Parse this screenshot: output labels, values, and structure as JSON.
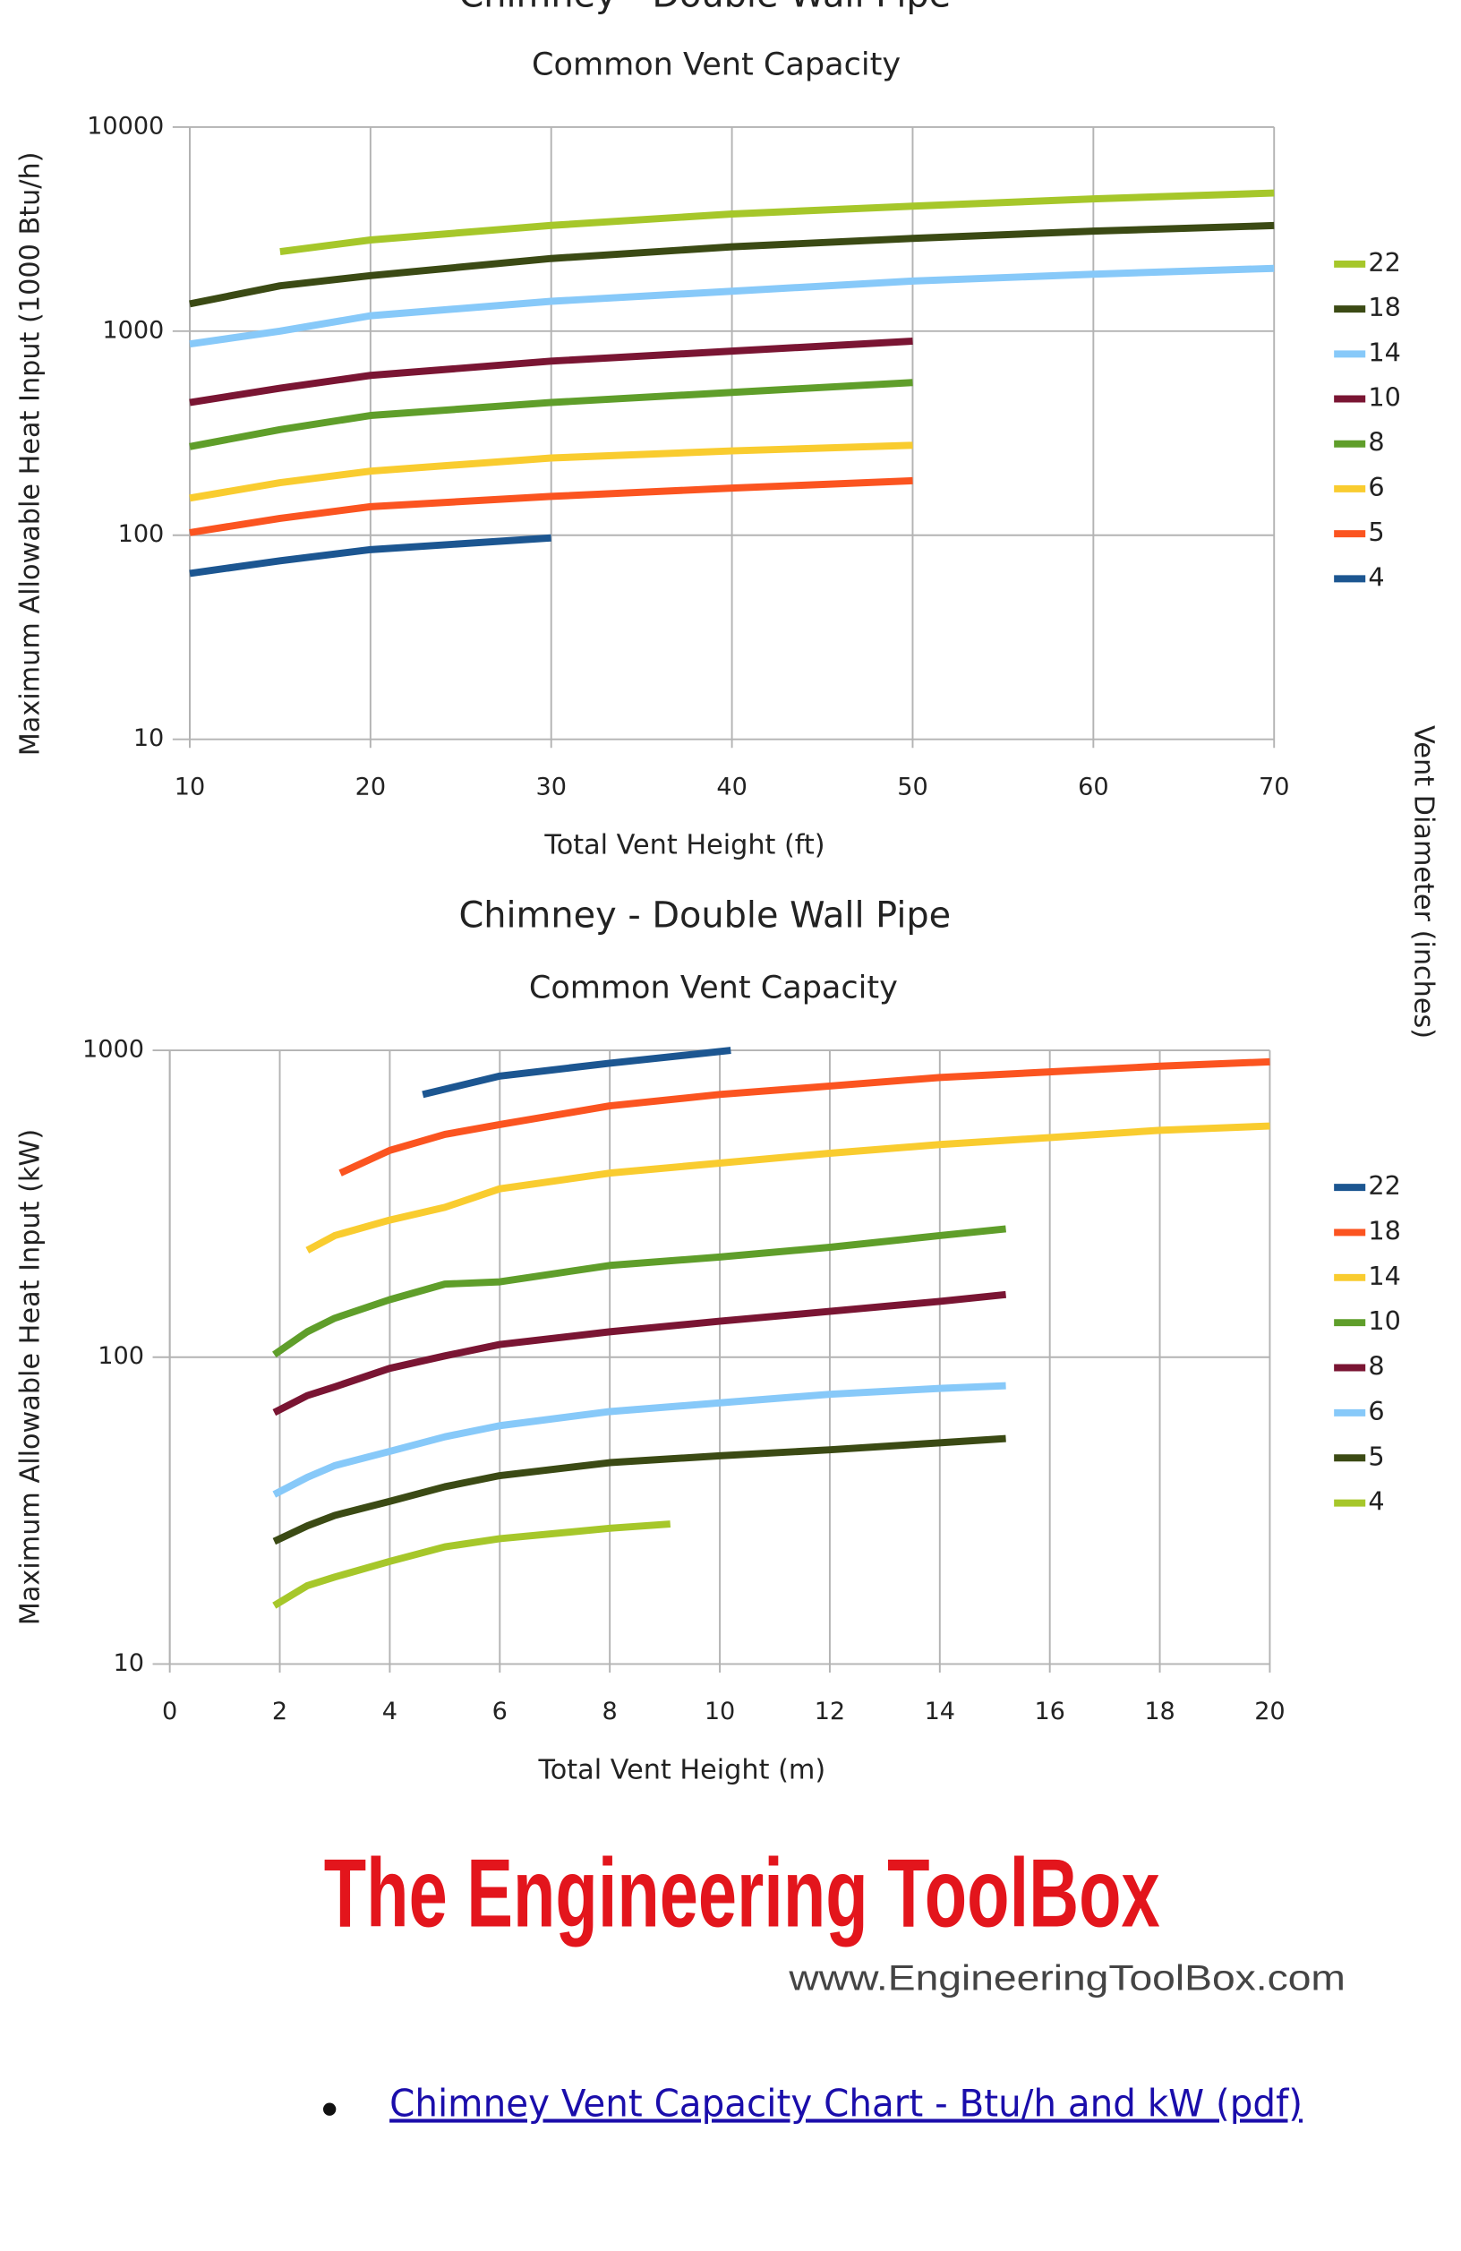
{
  "chart_data": [
    {
      "type": "line",
      "title": "Chimney - Double Wall Pipe",
      "subtitle": "Common Vent Capacity",
      "x_label": "Total Vent Height (ft)",
      "y_label": "Maximum Allowable Heat Input (1000 Btu/h)",
      "legend_title": "Vent Diameter (inches)",
      "legend": "right",
      "grid": true,
      "ylog": true,
      "xlim": [
        10,
        70
      ],
      "xticks": [
        10,
        20,
        30,
        40,
        50,
        60,
        70
      ],
      "ylim": [
        10,
        10000
      ],
      "yticks": [
        10,
        100,
        1000,
        10000
      ],
      "series": [
        {
          "name": "22",
          "color": "#a6c72a",
          "x": [
            15,
            20,
            30,
            40,
            50,
            60,
            70
          ],
          "values": [
            2450,
            2800,
            3300,
            3750,
            4100,
            4450,
            4750
          ]
        },
        {
          "name": "18",
          "color": "#3b4a14",
          "x": [
            10,
            15,
            20,
            30,
            40,
            50,
            60,
            70
          ],
          "values": [
            1360,
            1670,
            1870,
            2270,
            2590,
            2850,
            3090,
            3290
          ]
        },
        {
          "name": "14",
          "color": "#87c9f9",
          "x": [
            10,
            15,
            20,
            30,
            40,
            50,
            60,
            70
          ],
          "values": [
            865,
            1000,
            1190,
            1400,
            1570,
            1760,
            1900,
            2030
          ]
        },
        {
          "name": "10",
          "color": "#7a1533",
          "x": [
            10,
            15,
            20,
            30,
            40,
            50
          ],
          "values": [
            447,
            525,
            607,
            713,
            798,
            893
          ]
        },
        {
          "name": "8",
          "color": "#5f9e2a",
          "x": [
            10,
            15,
            20,
            30,
            40,
            50
          ],
          "values": [
            272,
            329,
            386,
            447,
            501,
            560
          ]
        },
        {
          "name": "6",
          "color": "#f9cc2f",
          "x": [
            10,
            15,
            20,
            30,
            40,
            50
          ],
          "values": [
            152,
            181,
            206,
            239,
            259,
            276
          ]
        },
        {
          "name": "5",
          "color": "#fb5420",
          "x": [
            10,
            15,
            20,
            30,
            40,
            50
          ],
          "values": [
            103,
            121,
            138,
            155,
            170,
            185
          ]
        },
        {
          "name": "4",
          "color": "#1c5691",
          "x": [
            10,
            15,
            20,
            30
          ],
          "values": [
            65,
            75,
            85,
            97
          ]
        }
      ]
    },
    {
      "type": "line",
      "title": "Chimney - Double Wall Pipe",
      "subtitle": "Common Vent Capacity",
      "x_label": "Total Vent Height (m)",
      "y_label": "Maximum Allowable Heat Input (kW)",
      "legend": "right",
      "grid": true,
      "ylog": true,
      "xlim": [
        0,
        20
      ],
      "xticks": [
        0,
        2,
        4,
        6,
        8,
        10,
        12,
        14,
        16,
        18,
        20
      ],
      "ylim": [
        10,
        1000
      ],
      "yticks": [
        10,
        100,
        1000
      ],
      "series": [
        {
          "name": "22",
          "color": "#1c5691",
          "x": [
            4.6,
            6,
            8,
            10.2
          ],
          "values": [
            718,
            825,
            908,
            1000
          ]
        },
        {
          "name": "18",
          "color": "#fb5420",
          "x": [
            3.1,
            4,
            5,
            6,
            8,
            10,
            12,
            14,
            16,
            18,
            20
          ],
          "values": [
            398,
            472,
            532,
            573,
            659,
            718,
            765,
            816,
            851,
            888,
            918
          ]
        },
        {
          "name": "14",
          "color": "#f9cc2f",
          "x": [
            2.5,
            3,
            4,
            5,
            6,
            8,
            10,
            12,
            14,
            16,
            18,
            20
          ],
          "values": [
            223,
            249,
            280,
            308,
            354,
            398,
            429,
            462,
            493,
            520,
            549,
            567
          ]
        },
        {
          "name": "10",
          "color": "#5f9e2a",
          "x": [
            1.9,
            2.5,
            3,
            4,
            5,
            6,
            8,
            10,
            12,
            14,
            15.2
          ],
          "values": [
            102,
            121,
            134,
            154,
            173,
            176,
            199,
            212,
            228,
            249,
            262
          ]
        },
        {
          "name": "8",
          "color": "#7a1533",
          "x": [
            1.9,
            2.5,
            3,
            4,
            5,
            6,
            8,
            10,
            12,
            14,
            15.2
          ],
          "values": [
            66,
            75,
            80,
            92,
            101,
            110,
            121,
            131,
            141,
            152,
            160
          ]
        },
        {
          "name": "6",
          "color": "#87c9f9",
          "x": [
            1.9,
            2.5,
            3,
            4,
            5,
            6,
            8,
            10,
            12,
            14,
            15.2
          ],
          "values": [
            35.7,
            40.6,
            44.3,
            49.3,
            55,
            59.8,
            66.5,
            71,
            75.7,
            79.1,
            80.7
          ]
        },
        {
          "name": "5",
          "color": "#3b4a14",
          "x": [
            1.9,
            2.5,
            3,
            4,
            5,
            6,
            8,
            10,
            12,
            14,
            15.2
          ],
          "values": [
            25.1,
            28.2,
            30.5,
            33.9,
            37.8,
            41.1,
            45.3,
            47.7,
            49.9,
            52.6,
            54.3
          ]
        },
        {
          "name": "4",
          "color": "#a6c72a",
          "x": [
            1.9,
            2.5,
            3,
            4,
            5,
            6,
            8,
            9.1
          ],
          "values": [
            15.5,
            18,
            19.2,
            21.6,
            24.1,
            25.6,
            27.7,
            28.6
          ]
        }
      ]
    }
  ],
  "logo": {
    "name": "The Engineering ToolBox",
    "url": "www.EngineeringToolBox.com"
  },
  "link": "Chimney Vent Capacity Chart - Btu/h and kW (pdf)"
}
